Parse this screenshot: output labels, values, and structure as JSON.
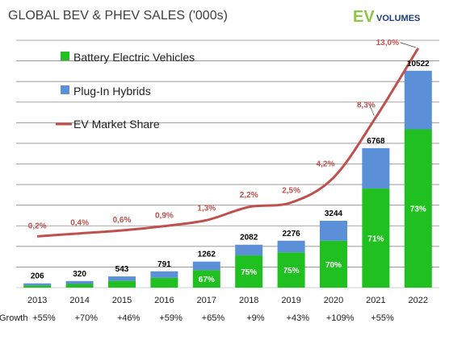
{
  "header": {
    "title": "GLOBAL BEV & PHEV SALES ('000s)",
    "brand_ev": "EV",
    "brand_volumes": "VOLUMES"
  },
  "legend": {
    "placement": "top-left",
    "items": [
      {
        "label": "Battery Electric Vehicles",
        "color": "#21c021",
        "shape": "square"
      },
      {
        "label": "Plug-In Hybrids",
        "color": "#5b8fd8",
        "shape": "square"
      },
      {
        "label": "EV Market Share",
        "color": "#c0504d",
        "shape": "line"
      }
    ]
  },
  "growth_label": "Growth",
  "chart_data": {
    "type": "bar",
    "title": "GLOBAL BEV & PHEV SALES ('000s)",
    "stacked": true,
    "categories": [
      "2013",
      "2014",
      "2015",
      "2016",
      "2017",
      "2018",
      "2019",
      "2020",
      "2021",
      "2022"
    ],
    "totals": [
      206,
      320,
      543,
      791,
      1262,
      2082,
      2276,
      3244,
      6768,
      10522
    ],
    "bev_share_labels": [
      "",
      "",
      "",
      "",
      "67%",
      "75%",
      "75%",
      "70%",
      "71%",
      "73%"
    ],
    "bev_share": [
      0.5,
      0.55,
      0.6,
      0.6,
      0.67,
      0.75,
      0.75,
      0.7,
      0.71,
      0.73
    ],
    "series": [
      {
        "name": "Battery Electric Vehicles",
        "color": "#21c021"
      },
      {
        "name": "Plug-In Hybrids",
        "color": "#5b8fd8"
      }
    ],
    "line_series": {
      "name": "EV Market Share",
      "color": "#c0504d",
      "values": [
        0.2,
        0.4,
        0.6,
        0.9,
        1.3,
        2.2,
        2.5,
        4.2,
        8.3,
        13.0
      ],
      "labels": [
        "0,2%",
        "0,4%",
        "0,6%",
        "0,9%",
        "1,3%",
        "2,2%",
        "2,5%",
        "4,2%",
        "8,3%",
        "13,0%"
      ]
    },
    "growth": [
      "+55%",
      "+70%",
      "+46%",
      "+59%",
      "+65%",
      "+9%",
      "+43%",
      "+109%",
      "+55%"
    ],
    "ylim": [
      0,
      12000
    ],
    "grid": true,
    "colors": {
      "bev": "#21c021",
      "phev": "#5b8fd8",
      "share": "#c0504d",
      "grid": "#8c8c8c"
    }
  }
}
